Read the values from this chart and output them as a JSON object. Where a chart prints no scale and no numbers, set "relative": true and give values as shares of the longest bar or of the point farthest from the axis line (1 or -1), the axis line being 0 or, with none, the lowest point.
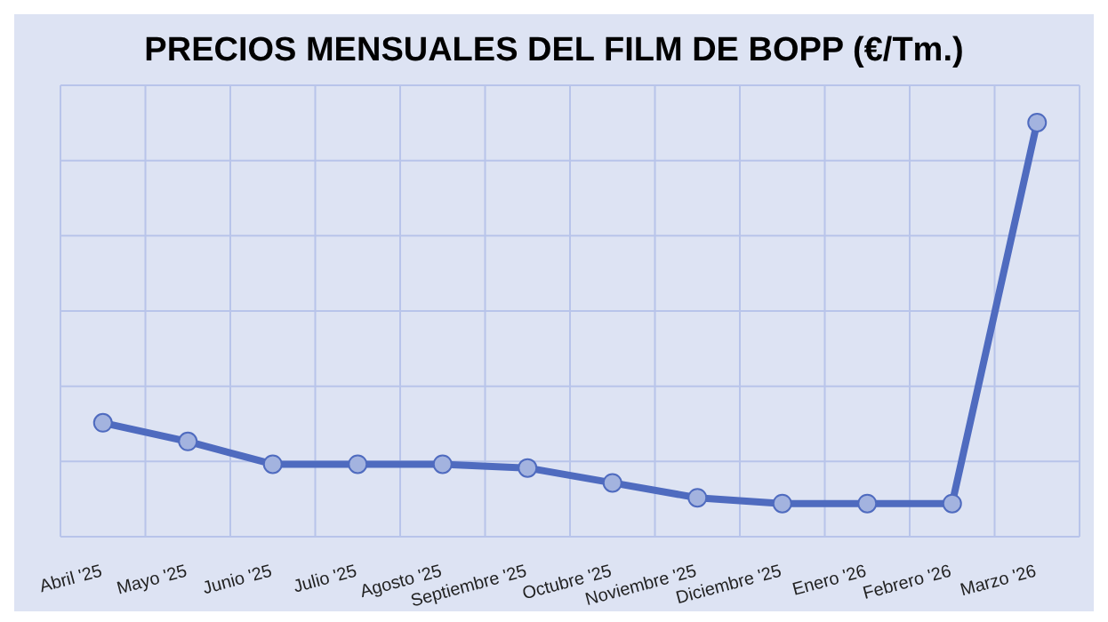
{
  "chart_data": {
    "type": "line",
    "title": "PRECIOS MENSUALES DEL FILM DE BOPP (€/Tm.)",
    "relative": true,
    "grid": true,
    "marker": "circle",
    "line_style": "solid",
    "categories": [
      "Abril '25",
      "Mayo '25",
      "Junio '25",
      "Julio '25",
      "Agosto '25",
      "Septiembre '25",
      "Octubre '25",
      "Noviembre '25",
      "Diciembre '25",
      "Enero '26",
      "Febrero '26",
      "Marzo '26"
    ],
    "series": [
      {
        "color": "#4f6bbf",
        "values": [
          0.275,
          0.23,
          0.175,
          0.175,
          0.175,
          0.166,
          0.13,
          0.094,
          0.08,
          0.08,
          0.08,
          1
        ]
      }
    ]
  }
}
